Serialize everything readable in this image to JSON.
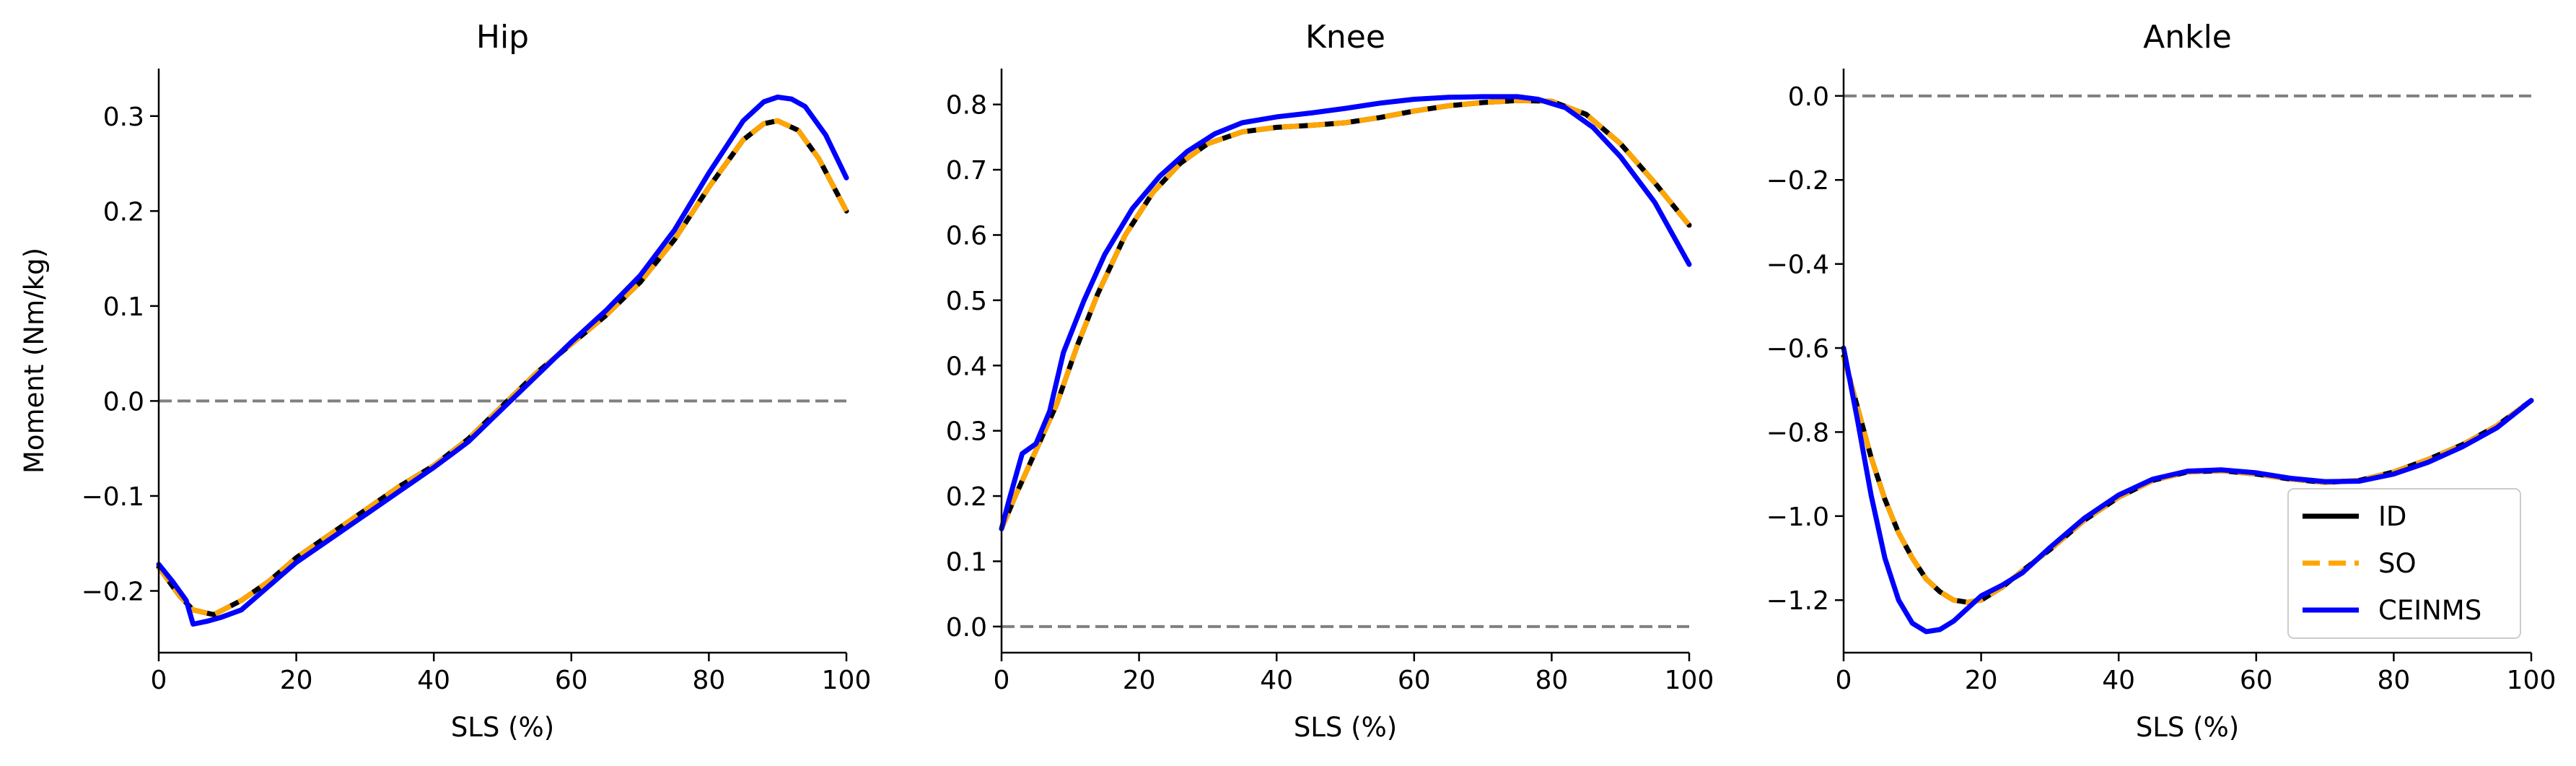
{
  "chart_data": [
    {
      "type": "line",
      "title": "Hip",
      "xlabel": "SLS (%)",
      "ylabel": "Moment (Nm/kg)",
      "xlim": [
        0,
        100
      ],
      "ylim": [
        -0.265,
        0.35
      ],
      "xticks": [
        0,
        20,
        40,
        60,
        80,
        100
      ],
      "xtick_labels": [
        "0",
        "20",
        "40",
        "60",
        "80",
        "100"
      ],
      "yticks": [
        -0.2,
        -0.1,
        0.0,
        0.1,
        0.2,
        0.3
      ],
      "ytick_labels": [
        "−0.2",
        "−0.1",
        "0.0",
        "0.1",
        "0.2",
        "0.3"
      ],
      "reference_line": 0.0,
      "grid": false,
      "series": [
        {
          "name": "ID",
          "color": "#000000",
          "style": "solid",
          "x": [
            0,
            3,
            5,
            8,
            12,
            16,
            20,
            25,
            30,
            35,
            40,
            45,
            50,
            55,
            60,
            65,
            70,
            75,
            80,
            85,
            88,
            90,
            93,
            96,
            100
          ],
          "y": [
            -0.175,
            -0.205,
            -0.22,
            -0.225,
            -0.21,
            -0.19,
            -0.165,
            -0.14,
            -0.115,
            -0.09,
            -0.068,
            -0.04,
            -0.005,
            0.03,
            0.06,
            0.09,
            0.125,
            0.17,
            0.225,
            0.275,
            0.292,
            0.295,
            0.285,
            0.255,
            0.2
          ]
        },
        {
          "name": "SO",
          "color": "#FFA500",
          "style": "dashed",
          "x": [
            0,
            3,
            5,
            8,
            12,
            16,
            20,
            25,
            30,
            35,
            40,
            45,
            50,
            55,
            60,
            65,
            70,
            75,
            80,
            85,
            88,
            90,
            93,
            96,
            100
          ],
          "y": [
            -0.175,
            -0.205,
            -0.22,
            -0.225,
            -0.21,
            -0.19,
            -0.165,
            -0.14,
            -0.115,
            -0.09,
            -0.068,
            -0.04,
            -0.005,
            0.03,
            0.06,
            0.09,
            0.125,
            0.17,
            0.225,
            0.275,
            0.292,
            0.295,
            0.285,
            0.255,
            0.2
          ]
        },
        {
          "name": "CEINMS",
          "color": "#0000FF",
          "style": "solid",
          "x": [
            0,
            2,
            4,
            5,
            7,
            9,
            12,
            16,
            20,
            25,
            30,
            35,
            40,
            45,
            50,
            55,
            60,
            65,
            70,
            75,
            80,
            85,
            88,
            90,
            92,
            94,
            97,
            100
          ],
          "y": [
            -0.172,
            -0.19,
            -0.21,
            -0.235,
            -0.232,
            -0.228,
            -0.22,
            -0.195,
            -0.17,
            -0.145,
            -0.12,
            -0.095,
            -0.07,
            -0.043,
            -0.008,
            0.027,
            0.062,
            0.095,
            0.132,
            0.18,
            0.24,
            0.295,
            0.315,
            0.32,
            0.318,
            0.31,
            0.28,
            0.235
          ]
        }
      ],
      "legend": null
    },
    {
      "type": "line",
      "title": "Knee",
      "xlabel": "SLS (%)",
      "ylabel": "",
      "xlim": [
        0,
        100
      ],
      "ylim": [
        -0.04,
        0.855
      ],
      "xticks": [
        0,
        20,
        40,
        60,
        80,
        100
      ],
      "xtick_labels": [
        "0",
        "20",
        "40",
        "60",
        "80",
        "100"
      ],
      "yticks": [
        0.0,
        0.1,
        0.2,
        0.3,
        0.4,
        0.5,
        0.6,
        0.7,
        0.8
      ],
      "ytick_labels": [
        "0.0",
        "0.1",
        "0.2",
        "0.3",
        "0.4",
        "0.5",
        "0.6",
        "0.7",
        "0.8"
      ],
      "reference_line": 0.0,
      "grid": false,
      "series": [
        {
          "name": "ID",
          "color": "#000000",
          "style": "solid",
          "x": [
            0,
            2,
            5,
            8,
            11,
            14,
            18,
            22,
            26,
            30,
            35,
            40,
            45,
            50,
            55,
            60,
            65,
            70,
            75,
            80,
            85,
            90,
            95,
            100
          ],
          "y": [
            0.15,
            0.2,
            0.27,
            0.34,
            0.43,
            0.51,
            0.6,
            0.665,
            0.71,
            0.74,
            0.758,
            0.765,
            0.768,
            0.772,
            0.78,
            0.79,
            0.798,
            0.803,
            0.806,
            0.805,
            0.785,
            0.74,
            0.68,
            0.615
          ]
        },
        {
          "name": "SO",
          "color": "#FFA500",
          "style": "dashed",
          "x": [
            0,
            2,
            5,
            8,
            11,
            14,
            18,
            22,
            26,
            30,
            35,
            40,
            45,
            50,
            55,
            60,
            65,
            70,
            75,
            80,
            85,
            90,
            95,
            100
          ],
          "y": [
            0.15,
            0.2,
            0.27,
            0.34,
            0.43,
            0.51,
            0.6,
            0.665,
            0.71,
            0.74,
            0.758,
            0.765,
            0.768,
            0.772,
            0.78,
            0.79,
            0.798,
            0.803,
            0.806,
            0.805,
            0.785,
            0.74,
            0.68,
            0.615
          ]
        },
        {
          "name": "CEINMS",
          "color": "#0000FF",
          "style": "solid",
          "x": [
            0,
            1,
            3,
            5,
            7,
            9,
            12,
            15,
            19,
            23,
            27,
            31,
            35,
            40,
            45,
            50,
            55,
            60,
            65,
            70,
            75,
            78,
            82,
            86,
            90,
            95,
            100
          ],
          "y": [
            0.15,
            0.19,
            0.265,
            0.28,
            0.33,
            0.42,
            0.5,
            0.57,
            0.64,
            0.69,
            0.728,
            0.755,
            0.772,
            0.781,
            0.787,
            0.794,
            0.802,
            0.808,
            0.811,
            0.812,
            0.812,
            0.808,
            0.795,
            0.765,
            0.72,
            0.65,
            0.555
          ]
        }
      ],
      "legend": null
    },
    {
      "type": "line",
      "title": "Ankle",
      "xlabel": "SLS (%)",
      "ylabel": "",
      "xlim": [
        0,
        100
      ],
      "ylim": [
        -1.325,
        0.065
      ],
      "xticks": [
        0,
        20,
        40,
        60,
        80,
        100
      ],
      "xtick_labels": [
        "0",
        "20",
        "40",
        "60",
        "80",
        "100"
      ],
      "yticks": [
        0.0,
        -0.2,
        -0.4,
        -0.6,
        -0.8,
        -1.0,
        -1.2
      ],
      "ytick_labels": [
        "0.0",
        "−0.2",
        "−0.4",
        "−0.6",
        "−0.8",
        "−1.0",
        "−1.2"
      ],
      "reference_line": 0.0,
      "grid": false,
      "series": [
        {
          "name": "ID",
          "color": "#000000",
          "style": "solid",
          "x": [
            0,
            2,
            4,
            6,
            8,
            10,
            12,
            14,
            16,
            18,
            20,
            23,
            26,
            30,
            35,
            40,
            45,
            50,
            55,
            60,
            65,
            70,
            75,
            80,
            85,
            90,
            95,
            100
          ],
          "y": [
            -0.62,
            -0.74,
            -0.86,
            -0.96,
            -1.04,
            -1.1,
            -1.15,
            -1.18,
            -1.2,
            -1.205,
            -1.2,
            -1.17,
            -1.13,
            -1.08,
            -1.01,
            -0.955,
            -0.915,
            -0.895,
            -0.892,
            -0.9,
            -0.912,
            -0.92,
            -0.915,
            -0.895,
            -0.865,
            -0.83,
            -0.785,
            -0.725
          ]
        },
        {
          "name": "SO",
          "color": "#FFA500",
          "style": "dashed",
          "x": [
            0,
            2,
            4,
            6,
            8,
            10,
            12,
            14,
            16,
            18,
            20,
            23,
            26,
            30,
            35,
            40,
            45,
            50,
            55,
            60,
            65,
            70,
            75,
            80,
            85,
            90,
            95,
            100
          ],
          "y": [
            -0.62,
            -0.74,
            -0.86,
            -0.96,
            -1.04,
            -1.1,
            -1.15,
            -1.18,
            -1.2,
            -1.205,
            -1.2,
            -1.17,
            -1.13,
            -1.08,
            -1.01,
            -0.955,
            -0.915,
            -0.895,
            -0.892,
            -0.9,
            -0.912,
            -0.92,
            -0.915,
            -0.895,
            -0.865,
            -0.83,
            -0.785,
            -0.725
          ]
        },
        {
          "name": "CEINMS",
          "color": "#0000FF",
          "style": "solid",
          "x": [
            0,
            2,
            4,
            6,
            8,
            10,
            12,
            14,
            16,
            18,
            20,
            23,
            26,
            30,
            35,
            40,
            45,
            50,
            55,
            60,
            65,
            70,
            75,
            80,
            85,
            90,
            95,
            100
          ],
          "y": [
            -0.6,
            -0.77,
            -0.95,
            -1.1,
            -1.2,
            -1.255,
            -1.275,
            -1.27,
            -1.25,
            -1.22,
            -1.19,
            -1.165,
            -1.135,
            -1.075,
            -1.005,
            -0.95,
            -0.912,
            -0.893,
            -0.89,
            -0.897,
            -0.91,
            -0.918,
            -0.917,
            -0.9,
            -0.872,
            -0.835,
            -0.79,
            -0.725
          ]
        }
      ],
      "legend": {
        "placement": "lower-right",
        "entries": [
          {
            "label": "ID",
            "color": "#000000",
            "style": "solid"
          },
          {
            "label": "SO",
            "color": "#FFA500",
            "style": "dashed"
          },
          {
            "label": "CEINMS",
            "color": "#0000FF",
            "style": "solid"
          }
        ]
      }
    }
  ]
}
